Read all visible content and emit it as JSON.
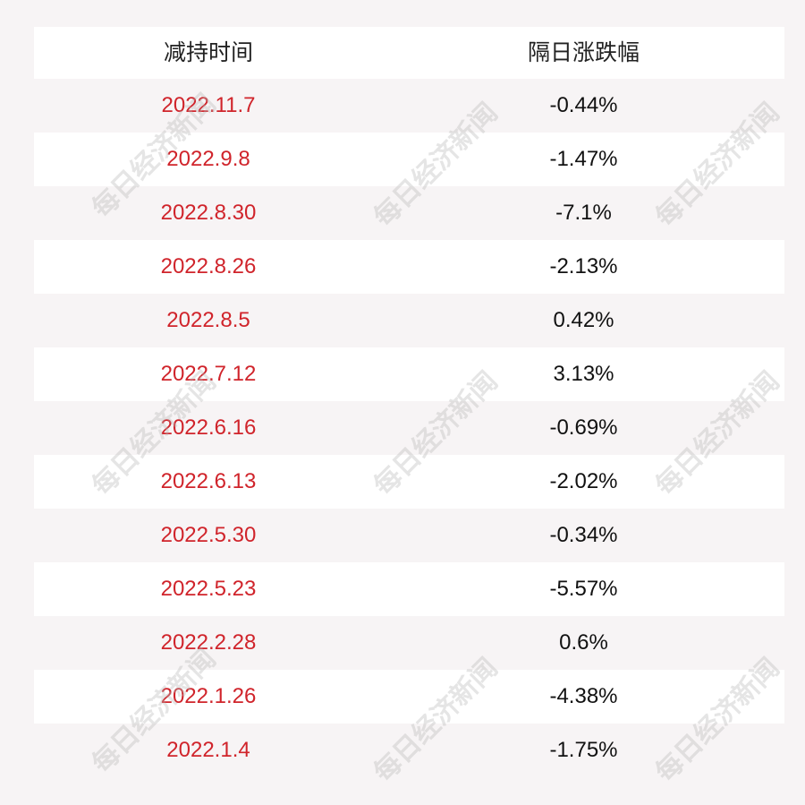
{
  "table": {
    "header": [
      "减持时间",
      "隔日涨跌幅"
    ],
    "rows": [
      [
        "2022.11.7",
        "-0.44%"
      ],
      [
        "2022.9.8",
        "-1.47%"
      ],
      [
        "2022.8.30",
        "-7.1%"
      ],
      [
        "2022.8.26",
        "-2.13%"
      ],
      [
        "2022.8.5",
        "0.42%"
      ],
      [
        "2022.7.12",
        "3.13%"
      ],
      [
        "2022.6.16",
        "-0.69%"
      ],
      [
        "2022.6.13",
        "-2.02%"
      ],
      [
        "2022.5.30",
        "-0.34%"
      ],
      [
        "2022.5.23",
        "-5.57%"
      ],
      [
        "2022.2.28",
        "0.6%"
      ],
      [
        "2022.1.26",
        "-4.38%"
      ],
      [
        "2022.1.4",
        "-1.75%"
      ]
    ]
  },
  "watermark": "每日经济新闻"
}
